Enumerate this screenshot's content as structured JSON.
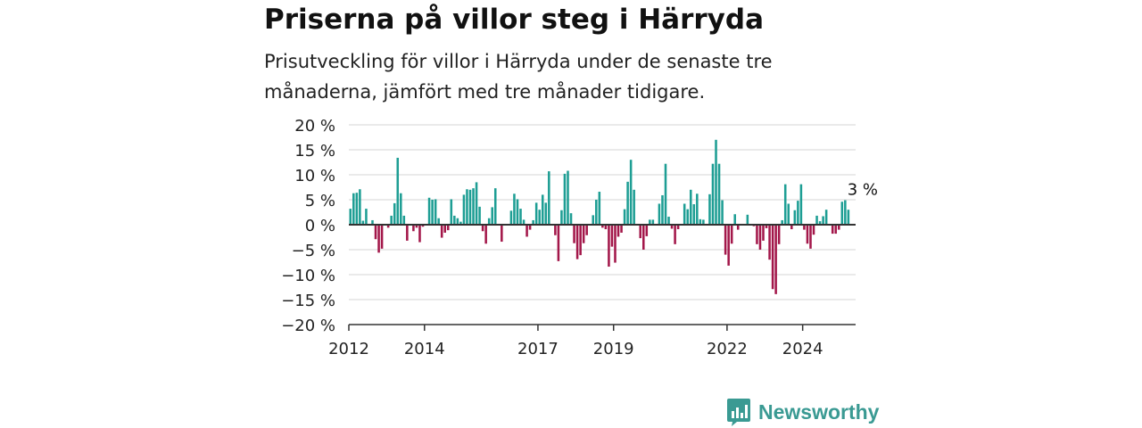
{
  "title": "Priserna på villor steg i Härryda",
  "subtitle": "Prisutveckling för villor i Härryda under de senaste tre månaderna, jämfört med tre månader tidigare.",
  "brand": "Newsworthy",
  "chart_data": {
    "type": "bar",
    "ylim": [
      -20,
      20
    ],
    "yticks": [
      20,
      15,
      10,
      5,
      0,
      -5,
      -10,
      -15,
      -20
    ],
    "ytick_labels": [
      "20 %",
      "15 %",
      "10 %",
      "5 %",
      "0 %",
      "−5 %",
      "−10 %",
      "−15 %",
      "−20 %"
    ],
    "xlim": [
      2012.0,
      2025.4
    ],
    "xticks": [
      2012,
      2014,
      2017,
      2019,
      2022,
      2024
    ],
    "xtick_labels": [
      "2012",
      "2014",
      "2017",
      "2019",
      "2022",
      "2024"
    ],
    "grid": true,
    "annotation": "3 %",
    "colors": {
      "positive": "#1e9e94",
      "negative": "#a3174a",
      "grid": "#d6d6d6",
      "axis": "#333333"
    },
    "start": "2012-01",
    "frequency": "monthly",
    "values": [
      3.2,
      6.3,
      6.4,
      7.1,
      0.8,
      3.2,
      0.0,
      0.9,
      -2.9,
      -5.6,
      -4.8,
      0.0,
      -0.6,
      1.8,
      4.3,
      13.4,
      6.3,
      1.8,
      -3.2,
      0.0,
      -1.3,
      -0.6,
      -3.5,
      -0.4,
      0.0,
      5.4,
      5.0,
      5.1,
      1.3,
      -2.6,
      -1.6,
      -1.1,
      5.1,
      1.8,
      1.3,
      0.6,
      6.0,
      7.1,
      7.0,
      7.3,
      8.5,
      3.6,
      -1.3,
      -3.8,
      1.3,
      3.5,
      7.3,
      0.0,
      -3.4,
      0.0,
      0.0,
      2.8,
      6.2,
      5.1,
      3.2,
      1.0,
      -2.4,
      -1.0,
      0.9,
      4.4,
      3.0,
      6.0,
      4.4,
      10.7,
      0.0,
      -2.1,
      -7.3,
      2.9,
      10.2,
      10.8,
      2.3,
      -3.7,
      -6.9,
      -6.1,
      -3.7,
      -2.1,
      0.0,
      1.9,
      5.0,
      6.6,
      -0.6,
      -0.9,
      -8.4,
      -4.4,
      -7.6,
      -2.4,
      -1.6,
      3.1,
      8.6,
      13.0,
      7.0,
      0.0,
      -2.7,
      -5.0,
      -2.3,
      1.0,
      1.0,
      0.0,
      4.2,
      5.9,
      12.2,
      1.6,
      -0.8,
      -3.9,
      -0.9,
      0.0,
      4.2,
      3.1,
      7.0,
      4.1,
      6.2,
      1.1,
      1.0,
      0.0,
      6.1,
      12.2,
      17.0,
      12.2,
      4.9,
      -6.0,
      -8.2,
      -3.8,
      2.1,
      -1.0,
      0.0,
      0.0,
      2.0,
      0.0,
      -0.3,
      -3.9,
      -5.0,
      -3.2,
      -0.7,
      -7.0,
      -12.9,
      -13.9,
      -3.9,
      0.9,
      8.1,
      4.2,
      -0.9,
      2.9,
      4.8,
      8.1,
      -1.0,
      -3.8,
      -4.8,
      -2.0,
      1.8,
      0.7,
      1.7,
      3.0,
      0.0,
      -1.8,
      -1.8,
      -1.0,
      4.6,
      4.9,
      3.0
    ]
  }
}
